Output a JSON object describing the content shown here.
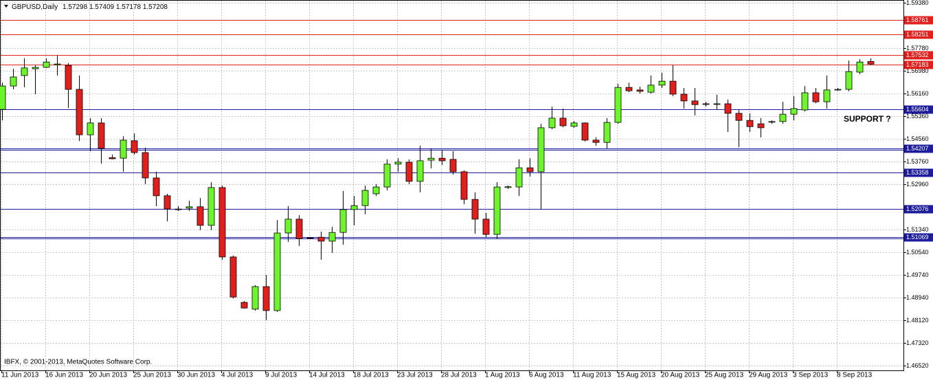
{
  "chart_data": {
    "type": "candlestick",
    "symbol": "GBPUSD,Daily",
    "footer": "IBFX, © 2001-2013, MetaQuotes Software Corp.",
    "annotation": "SUPPORT ?",
    "grid": true,
    "up_color": "#6cf52b",
    "down_color": "#e0201c",
    "categories": [
      "11 Jun 2013",
      null,
      null,
      null,
      "16 Jun 2013",
      null,
      null,
      null,
      "20 Jun 2013",
      null,
      null,
      null,
      "25 Jun 2013",
      null,
      null,
      null,
      "30 Jun 2013",
      null,
      null,
      null,
      "4 Jul 2013",
      null,
      null,
      null,
      "9 Jul 2013",
      null,
      null,
      null,
      "14 Jul 2013",
      null,
      null,
      null,
      "18 Jul 2013",
      null,
      null,
      null,
      "23 Jul 2013",
      null,
      null,
      null,
      "28 Jul 2013",
      null,
      null,
      null,
      "1 Aug 2013",
      null,
      null,
      null,
      "6 Aug 2013",
      null,
      null,
      null,
      "11 Aug 2013",
      null,
      null,
      null,
      "15 Aug 2013",
      null,
      null,
      null,
      "20 Aug 2013",
      null,
      null,
      null,
      "25 Aug 2013",
      null,
      null,
      null,
      "29 Aug 2013",
      null,
      null,
      null,
      "3 Sep 2013",
      null,
      null,
      null,
      "8 Sep 2013",
      null,
      null,
      null
    ],
    "open": [
      1.556,
      1.5643,
      1.568,
      1.5704,
      1.5709,
      1.5718,
      1.5716,
      1.5631,
      1.547,
      1.5512,
      1.5389,
      1.5387,
      1.5449,
      1.5407,
      1.5317,
      1.5254,
      1.5207,
      1.521,
      1.5215,
      1.5149,
      1.5283,
      1.5037,
      1.4876,
      1.4852,
      1.4932,
      1.4847,
      1.5122,
      1.5171,
      1.5105,
      1.5107,
      1.5093,
      1.5124,
      1.5205,
      1.5219,
      1.5261,
      1.5285,
      1.5366,
      1.5373,
      1.5305,
      1.538,
      1.5387,
      1.5383,
      1.5339,
      1.5241,
      1.5171,
      1.5117,
      1.5283,
      1.5285,
      1.5353,
      1.5339,
      1.5495,
      1.5529,
      1.55,
      1.5512,
      1.5451,
      1.5443,
      1.5514,
      1.5638,
      1.5629,
      1.5621,
      1.5646,
      1.566,
      1.5614,
      1.559,
      1.558,
      1.5578,
      1.558,
      1.5546,
      1.5521,
      1.5509,
      1.5516,
      1.5517,
      1.5543,
      1.5558,
      1.5619,
      1.5587,
      1.5629,
      1.5631,
      1.5692,
      1.57298
    ],
    "high": [
      1.5655,
      1.5704,
      1.5741,
      1.5716,
      1.5741,
      1.5753,
      1.5724,
      1.568,
      1.5529,
      1.5529,
      1.54,
      1.5465,
      1.5475,
      1.5424,
      1.5339,
      1.5261,
      1.5217,
      1.5236,
      1.5246,
      1.5302,
      1.529,
      1.5042,
      1.4881,
      1.4937,
      1.4973,
      1.5168,
      1.5217,
      1.5185,
      1.5108,
      1.5127,
      1.5144,
      1.5271,
      1.5253,
      1.529,
      1.5295,
      1.5383,
      1.5387,
      1.5383,
      1.5431,
      1.5422,
      1.5417,
      1.5412,
      1.5344,
      1.5266,
      1.5193,
      1.5302,
      1.529,
      1.5383,
      1.5387,
      1.5509,
      1.557,
      1.5563,
      1.5519,
      1.5514,
      1.5461,
      1.5529,
      1.5651,
      1.5655,
      1.5641,
      1.568,
      1.569,
      1.5716,
      1.5636,
      1.5636,
      1.5587,
      1.5612,
      1.5595,
      1.5558,
      1.5546,
      1.5529,
      1.5521,
      1.5587,
      1.5607,
      1.5643,
      1.5636,
      1.568,
      1.5636,
      1.5733,
      1.5738,
      1.57409
    ],
    "low": [
      1.5521,
      1.5631,
      1.5638,
      1.5614,
      1.5707,
      1.568,
      1.5565,
      1.5448,
      1.5412,
      1.5368,
      1.5383,
      1.5339,
      1.54,
      1.5295,
      1.5217,
      1.5163,
      1.52,
      1.52,
      1.5132,
      1.5132,
      1.5027,
      1.489,
      1.4854,
      1.4847,
      1.4813,
      1.4842,
      1.509,
      1.5076,
      1.51,
      1.5027,
      1.5051,
      1.508,
      1.5149,
      1.5188,
      1.5253,
      1.5273,
      1.5339,
      1.5295,
      1.5266,
      1.5351,
      1.5363,
      1.5329,
      1.5224,
      1.5119,
      1.5107,
      1.51,
      1.5278,
      1.5253,
      1.5322,
      1.5205,
      1.549,
      1.5497,
      1.5495,
      1.5446,
      1.5431,
      1.5422,
      1.5509,
      1.5621,
      1.5616,
      1.5616,
      1.5636,
      1.5607,
      1.5563,
      1.5539,
      1.557,
      1.5558,
      1.548,
      1.5426,
      1.548,
      1.5461,
      1.5509,
      1.5509,
      1.5521,
      1.5553,
      1.5582,
      1.5563,
      1.5626,
      1.5624,
      1.5685,
      1.57178
    ],
    "close": [
      1.5643,
      1.5675,
      1.5707,
      1.5709,
      1.5728,
      1.5721,
      1.5631,
      1.547,
      1.5512,
      1.5422,
      1.5385,
      1.5451,
      1.5407,
      1.5317,
      1.5254,
      1.5207,
      1.5205,
      1.5215,
      1.5149,
      1.5283,
      1.5037,
      1.4895,
      1.4856,
      1.4932,
      1.4847,
      1.5122,
      1.5171,
      1.5102,
      1.5104,
      1.5093,
      1.5124,
      1.5205,
      1.5219,
      1.5273,
      1.5285,
      1.5366,
      1.5373,
      1.5305,
      1.5378,
      1.5387,
      1.5378,
      1.5339,
      1.5241,
      1.5171,
      1.5117,
      1.5285,
      1.5286,
      1.5353,
      1.5339,
      1.5495,
      1.5529,
      1.5502,
      1.5512,
      1.5451,
      1.5443,
      1.5514,
      1.5638,
      1.5626,
      1.5624,
      1.5646,
      1.566,
      1.5614,
      1.559,
      1.5577,
      1.5578,
      1.558,
      1.5546,
      1.5521,
      1.5499,
      1.5495,
      1.5517,
      1.5543,
      1.5563,
      1.5619,
      1.5587,
      1.5629,
      1.5631,
      1.5694,
      1.5728,
      1.57208
    ],
    "ylim": [
      1.4652,
      1.5938
    ],
    "yticks": [
      {
        "value": 1.5938,
        "label": "1.59380"
      },
      {
        "value": 1.5778,
        "label": "1.57780"
      },
      {
        "value": 1.5698,
        "label": "1.56980"
      },
      {
        "value": 1.5616,
        "label": "1.56160"
      },
      {
        "value": 1.5536,
        "label": "1.55360"
      },
      {
        "value": 1.5456,
        "label": "1.54560"
      },
      {
        "value": 1.5376,
        "label": "1.53760"
      },
      {
        "value": 1.5296,
        "label": "1.52960"
      },
      {
        "value": 1.5134,
        "label": "1.51340"
      },
      {
        "value": 1.5054,
        "label": "1.50540"
      },
      {
        "value": 1.4974,
        "label": "1.49740"
      },
      {
        "value": 1.4894,
        "label": "1.48940"
      },
      {
        "value": 1.4812,
        "label": "1.48120"
      },
      {
        "value": 1.4732,
        "label": "1.47320"
      },
      {
        "value": 1.4652,
        "label": "1.46520"
      }
    ],
    "levels": [
      {
        "value": 1.58761,
        "color": "#e0201c",
        "double": false
      },
      {
        "value": 1.58251,
        "color": "#e0201c",
        "double": false
      },
      {
        "value": 1.57532,
        "color": "#e0201c",
        "double": false
      },
      {
        "value": 1.57183,
        "color": "#e0201c",
        "double": false
      },
      {
        "value": 1.55604,
        "color": "#1c1c9c",
        "double": false
      },
      {
        "value": 1.54207,
        "color": "#1c1c9c",
        "double": true
      },
      {
        "value": 1.53358,
        "color": "#1c1c9c",
        "double": false
      },
      {
        "value": 1.52076,
        "color": "#1c1c9c",
        "double": false
      },
      {
        "value": 1.51069,
        "color": "#1c1c9c",
        "double": true
      }
    ]
  }
}
